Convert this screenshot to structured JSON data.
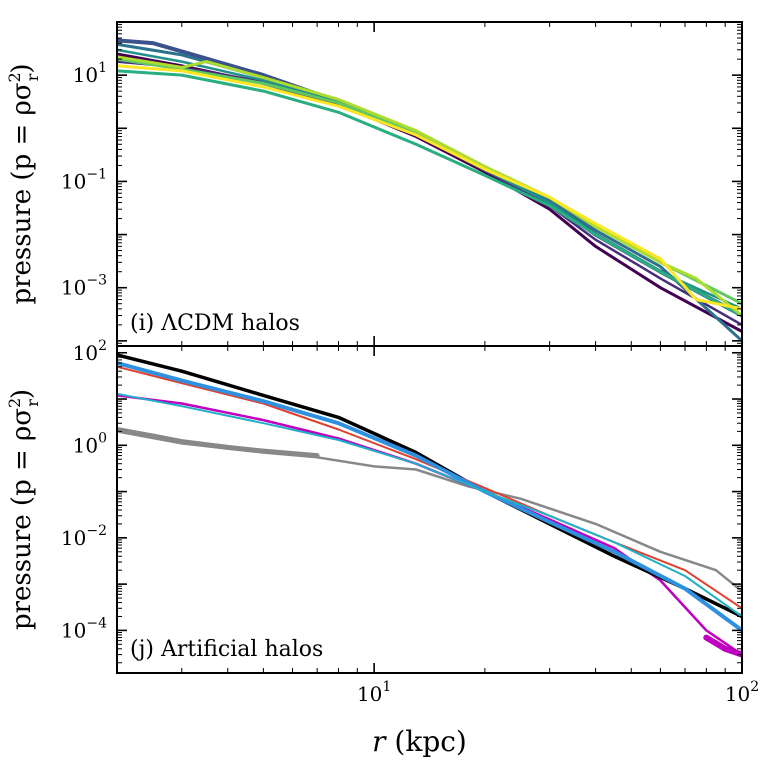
{
  "chart_data": [
    {
      "type": "line",
      "panel_label": "(i)   ΛCDM halos",
      "ylabel": "pressure (p = ρσ",
      "ylabel_sup": "2",
      "ylabel_sub": "r",
      "ylabel_end": ")",
      "xscale": "log",
      "yscale": "log",
      "xlim": [
        2.0,
        100
      ],
      "ylim": [
        8e-05,
        100
      ],
      "y_ticks": [
        {
          "value": 10,
          "label": "10",
          "exp": "1"
        },
        {
          "value": 0.1,
          "label": "10",
          "exp": "−1"
        },
        {
          "value": 0.001,
          "label": "10",
          "exp": "−3"
        }
      ],
      "series": [
        {
          "name": "halo-1",
          "color": "#440154",
          "width": 3,
          "x": [
            2,
            3,
            5,
            8,
            13,
            20,
            30,
            40,
            60,
            100
          ],
          "y": [
            25,
            15,
            7,
            2.8,
            0.7,
            0.15,
            0.03,
            0.006,
            0.001,
            0.00015
          ]
        },
        {
          "name": "halo-2",
          "color": "#472d7b",
          "width": 2.5,
          "x": [
            2,
            3,
            5,
            8,
            13,
            20,
            30,
            40,
            60,
            100
          ],
          "y": [
            18,
            14,
            7.5,
            3,
            0.8,
            0.16,
            0.035,
            0.008,
            0.0015,
            0.0002
          ]
        },
        {
          "name": "halo-3",
          "color": "#3b528b",
          "width": 4,
          "x": [
            2,
            2.5,
            3,
            5,
            8,
            13,
            20,
            30,
            40,
            60,
            100
          ],
          "y": [
            45,
            40,
            28,
            10,
            3.2,
            0.8,
            0.17,
            0.04,
            0.01,
            0.002,
            0.0003
          ]
        },
        {
          "name": "halo-4",
          "color": "#2c728e",
          "width": 3,
          "x": [
            2,
            3,
            5,
            8,
            13,
            20,
            30,
            40,
            60,
            100
          ],
          "y": [
            38,
            24,
            9,
            3.3,
            0.85,
            0.18,
            0.045,
            0.012,
            0.0025,
            0.0001
          ]
        },
        {
          "name": "halo-5",
          "color": "#21918c",
          "width": 2.5,
          "x": [
            2,
            3,
            5,
            8,
            13,
            20,
            30,
            40,
            60,
            100
          ],
          "y": [
            30,
            18,
            8,
            3,
            0.8,
            0.17,
            0.04,
            0.01,
            0.002,
            0.0004
          ]
        },
        {
          "name": "halo-6",
          "color": "#28ae80",
          "width": 3,
          "x": [
            2,
            3,
            5,
            8,
            13,
            20,
            30,
            40,
            60,
            100
          ],
          "y": [
            12,
            10,
            5,
            2,
            0.5,
            0.13,
            0.035,
            0.01,
            0.002,
            0.0003
          ]
        },
        {
          "name": "halo-7",
          "color": "#5ec962",
          "width": 3,
          "x": [
            2,
            3,
            5,
            8,
            13,
            20,
            30,
            40,
            60,
            100
          ],
          "y": [
            20,
            13,
            7,
            3,
            0.8,
            0.17,
            0.05,
            0.015,
            0.003,
            0.0005
          ]
        },
        {
          "name": "halo-8",
          "color": "#addc30",
          "width": 3,
          "x": [
            2,
            3,
            3.5,
            5,
            8,
            13,
            20,
            30,
            40,
            60,
            75,
            100
          ],
          "y": [
            22,
            14,
            18,
            9,
            3.5,
            0.9,
            0.19,
            0.05,
            0.014,
            0.003,
            0.0015,
            0.0003
          ]
        },
        {
          "name": "halo-9",
          "color": "#fde725",
          "width": 3,
          "x": [
            2,
            3,
            5,
            8,
            13,
            20,
            30,
            40,
            60,
            75,
            100
          ],
          "y": [
            15,
            12,
            6,
            2.6,
            0.75,
            0.17,
            0.05,
            0.016,
            0.0035,
            0.0006,
            0.0004
          ]
        }
      ]
    },
    {
      "type": "line",
      "panel_label": "(j)   Artificial halos",
      "ylabel": "pressure (p = ρσ",
      "ylabel_sup": "2",
      "ylabel_sub": "r",
      "ylabel_end": ")",
      "xlabel": "r",
      "xlabel_unit": " (kpc)",
      "xscale": "log",
      "yscale": "log",
      "xlim": [
        2.0,
        100
      ],
      "ylim": [
        1.2e-05,
        140
      ],
      "x_ticks": [
        {
          "value": 10,
          "label": "10",
          "exp": "1"
        },
        {
          "value": 100,
          "label": "10",
          "exp": "2"
        }
      ],
      "y_ticks": [
        {
          "value": 100,
          "label": "10",
          "exp": "2"
        },
        {
          "value": 1,
          "label": "10",
          "exp": "0"
        },
        {
          "value": 0.01,
          "label": "10",
          "exp": "−2"
        },
        {
          "value": 0.0001,
          "label": "10",
          "exp": "−4"
        }
      ],
      "series": [
        {
          "name": "grey-profile-thick",
          "color": "#888888",
          "width": 5,
          "x": [
            2,
            2.5,
            3,
            4,
            5,
            7
          ],
          "y": [
            2.2,
            1.6,
            1.2,
            0.9,
            0.75,
            0.6
          ]
        },
        {
          "name": "grey-profile",
          "color": "#888888",
          "width": 2.5,
          "x": [
            2,
            3,
            5,
            7,
            10,
            13,
            18,
            25,
            40,
            60,
            85,
            100
          ],
          "y": [
            2,
            1.1,
            0.7,
            0.55,
            0.35,
            0.3,
            0.13,
            0.07,
            0.02,
            0.005,
            0.002,
            0.0007
          ]
        },
        {
          "name": "magenta-profile",
          "color": "#c000c0",
          "width": 2.5,
          "x": [
            2,
            3,
            5,
            8,
            13,
            20,
            30,
            45,
            60,
            80,
            100
          ],
          "y": [
            12,
            8,
            3.5,
            1.4,
            0.4,
            0.1,
            0.025,
            0.006,
            0.0012,
            0.0001,
            3e-05
          ]
        },
        {
          "name": "magenta-profile-tail",
          "color": "#c000c0",
          "width": 6,
          "x": [
            80,
            90,
            100
          ],
          "y": [
            7e-05,
            4e-05,
            3e-05
          ]
        },
        {
          "name": "black-profile",
          "color": "#000000",
          "width": 3.5,
          "x": [
            2,
            3,
            5,
            8,
            13,
            20,
            30,
            45,
            70,
            100
          ],
          "y": [
            90,
            40,
            12,
            4,
            0.7,
            0.1,
            0.02,
            0.004,
            0.0008,
            0.0002
          ]
        },
        {
          "name": "red-profile",
          "color": "#e04030",
          "width": 2,
          "x": [
            2,
            3,
            5,
            8,
            13,
            20,
            30,
            45,
            70,
            100
          ],
          "y": [
            50,
            22,
            8,
            2.2,
            0.5,
            0.12,
            0.03,
            0.008,
            0.002,
            0.0003
          ]
        },
        {
          "name": "blue-profile",
          "color": "#3090e0",
          "width": 4,
          "x": [
            2,
            3,
            5,
            8,
            13,
            20,
            30,
            45,
            70,
            100
          ],
          "y": [
            60,
            25,
            9,
            3,
            0.6,
            0.1,
            0.022,
            0.005,
            0.0008,
            0.0001
          ]
        },
        {
          "name": "cyan-profile",
          "color": "#20b0c8",
          "width": 2,
          "x": [
            2,
            3,
            5,
            8,
            13,
            20,
            30,
            45,
            70,
            100
          ],
          "y": [
            13,
            7,
            3,
            1.3,
            0.4,
            0.1,
            0.03,
            0.008,
            0.0015,
            0.0002
          ]
        }
      ]
    }
  ]
}
